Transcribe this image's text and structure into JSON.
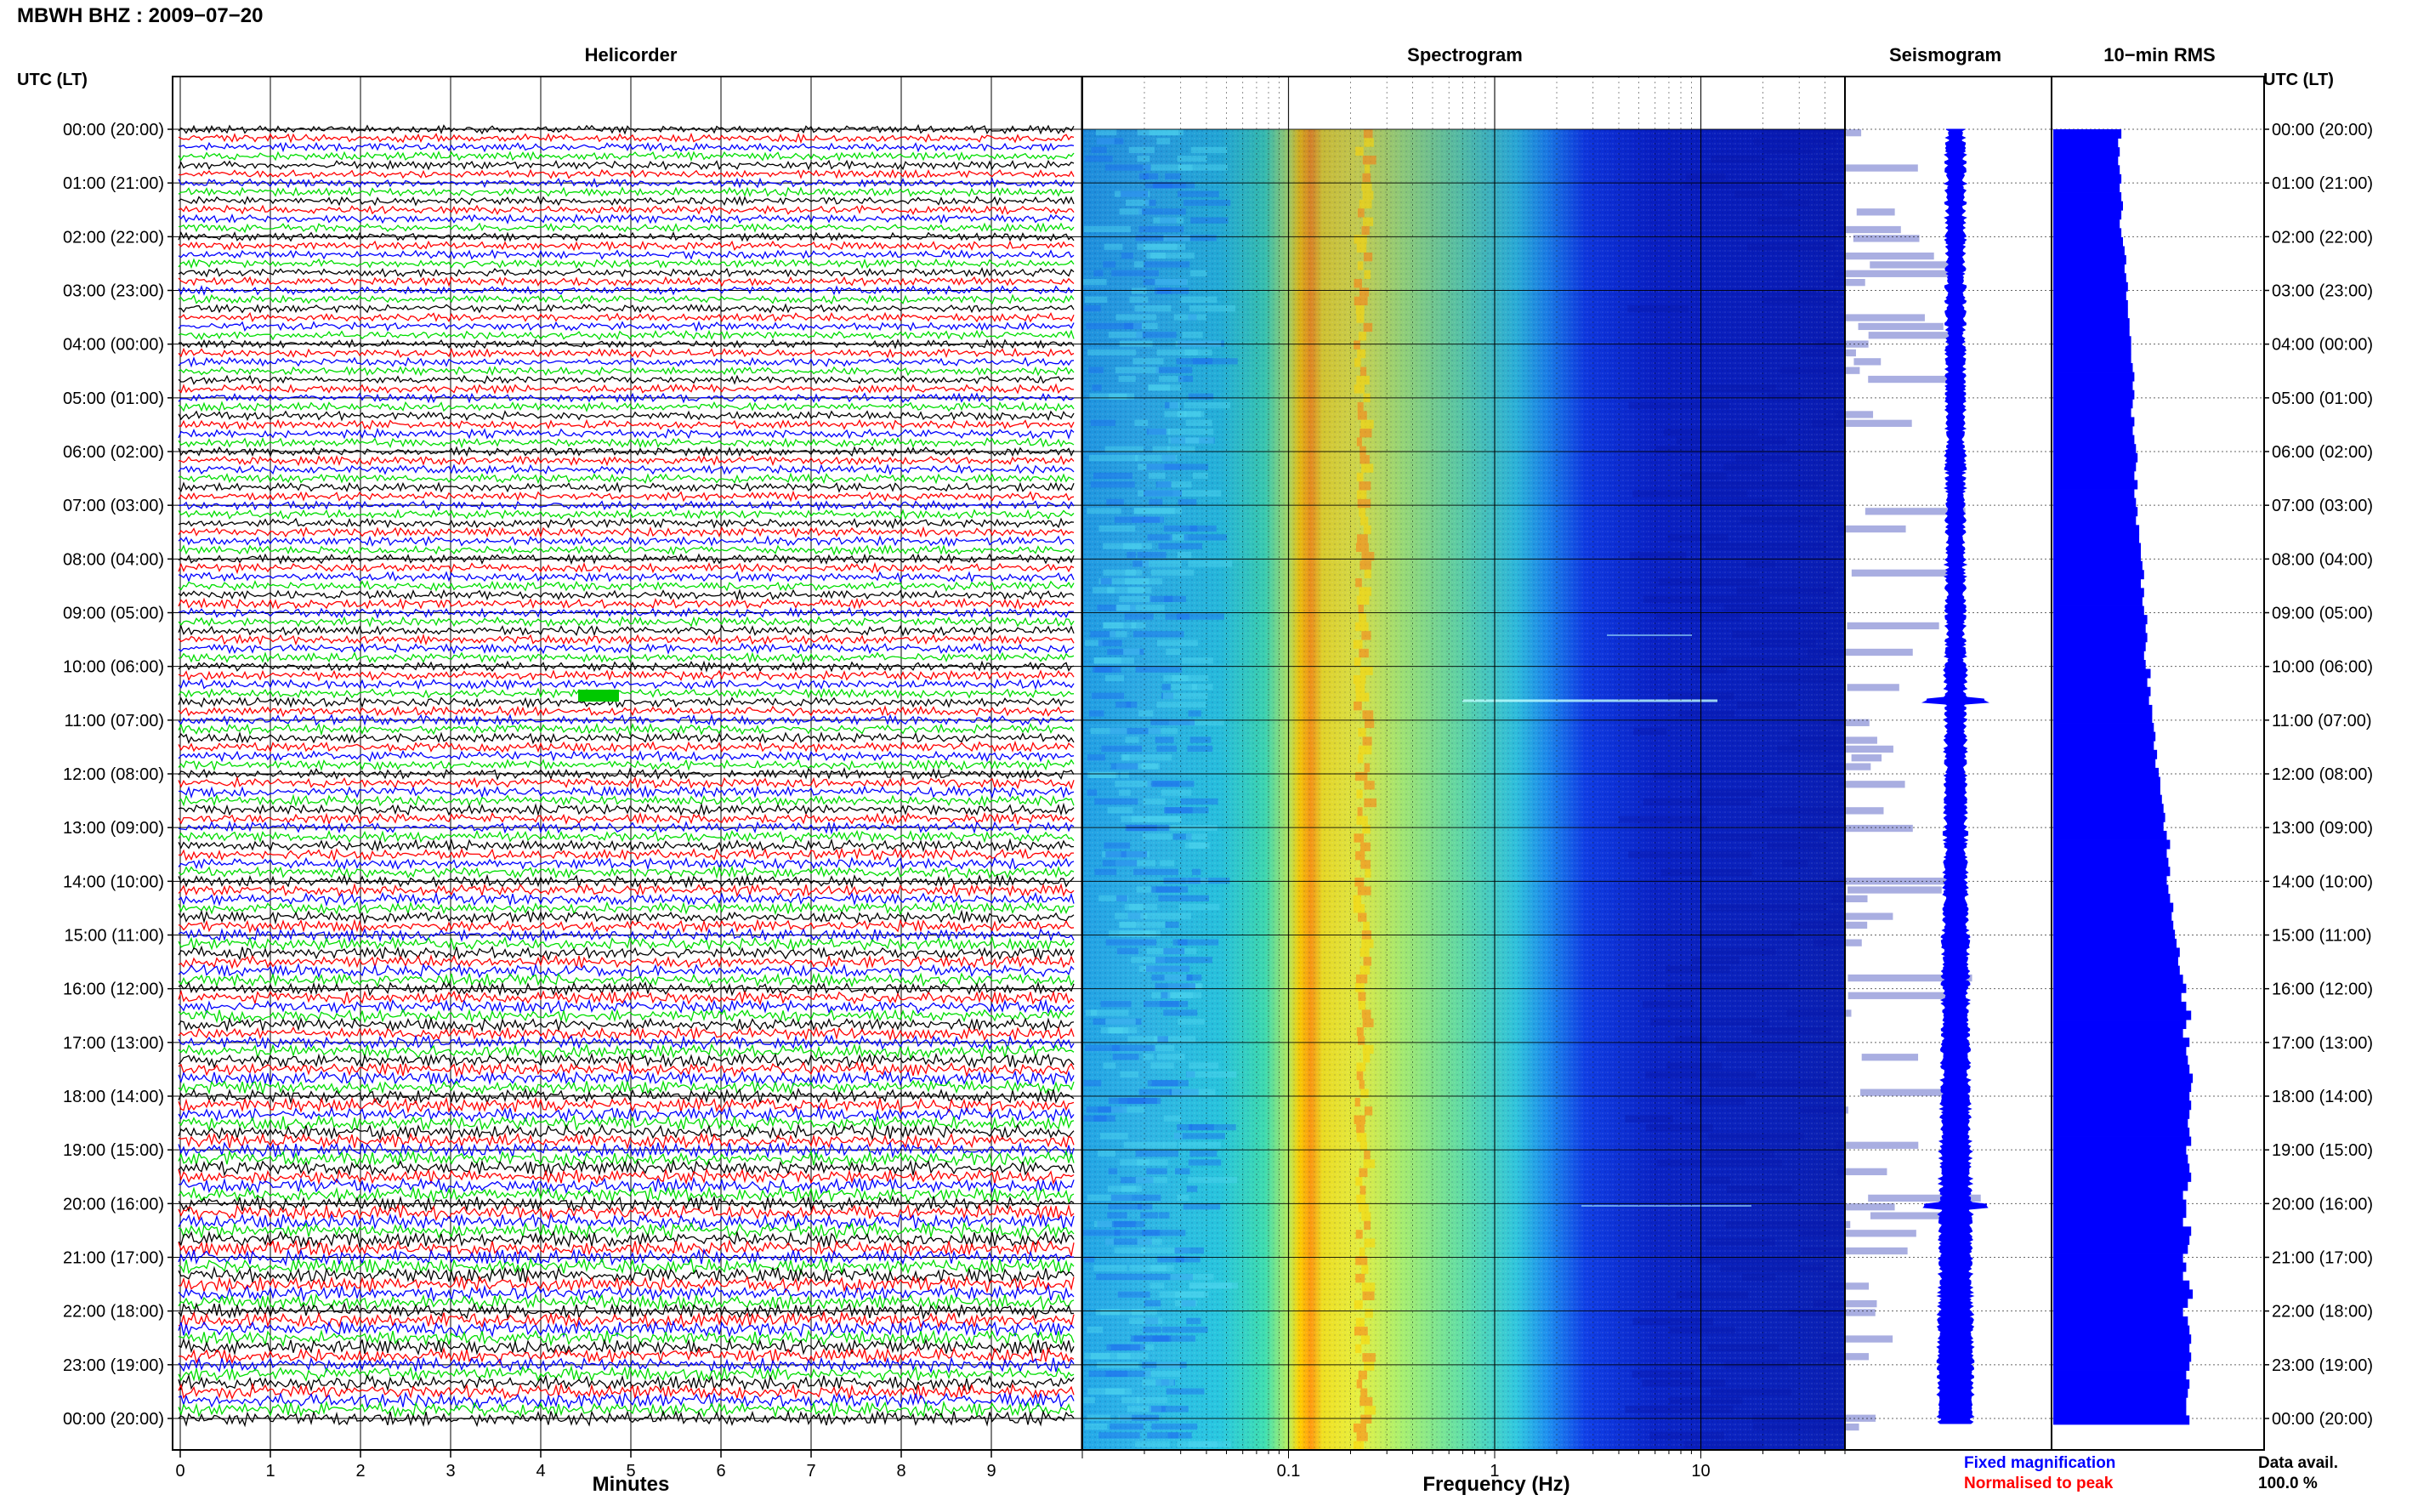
{
  "header": {
    "station_title": "MBWH BHZ : 2009−07−20",
    "utc_label_left": "UTC (LT)",
    "utc_label_right": "UTC (LT)"
  },
  "panels": {
    "helicorder": "Helicorder",
    "spectrogram": "Spectrogram",
    "seismogram": "Seismogram",
    "rms": "10−min RMS"
  },
  "chart_data": [
    {
      "type": "line",
      "title": "Helicorder",
      "xlabel": "Minutes",
      "x_ticks": [
        "0",
        "1",
        "2",
        "3",
        "4",
        "5",
        "6",
        "7",
        "8",
        "9"
      ],
      "xlim": [
        0,
        10
      ],
      "trace_colors": [
        "#000000",
        "#ff0000",
        "#0000ff",
        "#00dd00"
      ],
      "traces_per_hour": 6,
      "time_labels": [
        "00:00 (20:00)",
        "01:00 (21:00)",
        "02:00 (22:00)",
        "03:00 (23:00)",
        "04:00 (00:00)",
        "05:00 (01:00)",
        "06:00 (02:00)",
        "07:00 (03:00)",
        "08:00 (04:00)",
        "09:00 (05:00)",
        "10:00 (06:00)",
        "11:00 (07:00)",
        "12:00 (08:00)",
        "13:00 (09:00)",
        "14:00 (10:00)",
        "15:00 (11:00)",
        "16:00 (12:00)",
        "17:00 (13:00)",
        "18:00 (14:00)",
        "19:00 (15:00)",
        "20:00 (16:00)",
        "21:00 (17:00)",
        "22:00 (18:00)",
        "23:00 (19:00)",
        "00:00 (20:00)"
      ],
      "trace_amplitude_by_hour": [
        0.4,
        0.4,
        0.4,
        0.4,
        0.4,
        0.42,
        0.42,
        0.43,
        0.45,
        0.45,
        0.45,
        0.48,
        0.5,
        0.52,
        0.55,
        0.6,
        0.6,
        0.65,
        0.68,
        0.7,
        0.72,
        0.72,
        0.72,
        0.7
      ]
    },
    {
      "type": "heatmap",
      "title": "Spectrogram",
      "xlabel": "Frequency (Hz)",
      "x_scale": "log",
      "xlim": [
        0.01,
        50
      ],
      "x_ticks": [
        "0.1",
        "1",
        "10"
      ],
      "colormap": [
        "#0000ff",
        "#00c8ff",
        "#40ffb0",
        "#ffff00",
        "#ff8000"
      ]
    },
    {
      "type": "line",
      "title": "Seismogram",
      "note_fixed": "Fixed magnification",
      "note_normalised": "Normalised to peak",
      "color": "#0000ff",
      "halfwidth_by_hour": [
        10,
        10,
        10,
        10,
        10,
        10,
        10,
        10,
        10,
        10,
        11,
        11,
        12,
        12,
        13,
        14,
        14,
        15,
        16,
        17,
        18,
        18,
        19,
        19
      ]
    },
    {
      "type": "bar",
      "title": "10−min RMS",
      "color": "#0000ff",
      "values": [
        42,
        40,
        41,
        40,
        41,
        42,
        41,
        42,
        43,
        42,
        41,
        42,
        43,
        44,
        45,
        44,
        45,
        46,
        45,
        46,
        46,
        47,
        47,
        48,
        48,
        48,
        49,
        50,
        49,
        50,
        49,
        48,
        50,
        49,
        50,
        51,
        52,
        51,
        50,
        52,
        50,
        51,
        52,
        51,
        53,
        53,
        54,
        54,
        55,
        56,
        54,
        56,
        55,
        56,
        58,
        57,
        58,
        57,
        56,
        57,
        60,
        58,
        60,
        59,
        61,
        61,
        62,
        63,
        62,
        64,
        63,
        65,
        66,
        66,
        67,
        68,
        69,
        68,
        70,
        72,
        70,
        71,
        72,
        70,
        71,
        72,
        74,
        73,
        74,
        75,
        76,
        78,
        77,
        78,
        80,
        82,
        79,
        82,
        85,
        82,
        80,
        84,
        82,
        83,
        84,
        86,
        85,
        84,
        85,
        84,
        83,
        84,
        85,
        82,
        83,
        84,
        85,
        83,
        80,
        82,
        82,
        80,
        85,
        84,
        83,
        80,
        82,
        80,
        84,
        86,
        83,
        80,
        83,
        84,
        85,
        84,
        85,
        84,
        82,
        84,
        83,
        82,
        82,
        84
      ]
    }
  ],
  "footer": {
    "fixed_magnification": "Fixed magnification",
    "normalised_to_peak": "Normalised to peak",
    "data_avail_label": "Data avail.",
    "data_avail_value": "100.0 %",
    "fixed_color": "#0000ff",
    "normalised_color": "#ff0000"
  }
}
